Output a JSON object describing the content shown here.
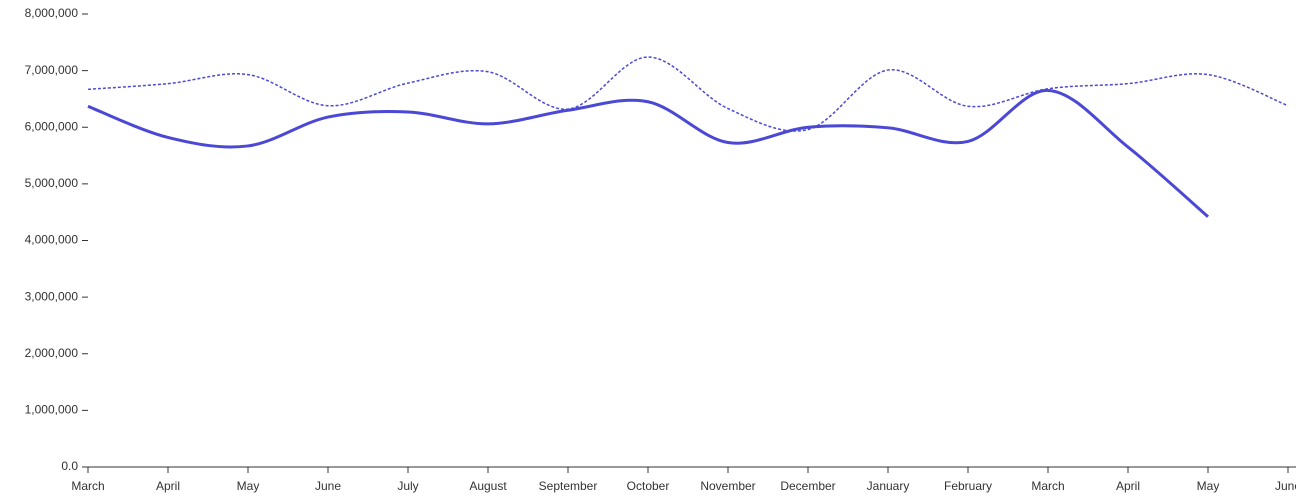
{
  "chart_data": {
    "type": "line",
    "categories": [
      "March",
      "April",
      "May",
      "June",
      "July",
      "August",
      "September",
      "October",
      "November",
      "December",
      "January",
      "February",
      "March",
      "April",
      "May",
      "June"
    ],
    "series": [
      {
        "color": "#4b48d6",
        "style": "solid",
        "values": [
          6370000,
          5820000,
          5670000,
          6180000,
          6270000,
          6060000,
          6300000,
          6450000,
          5730000,
          6000000,
          5990000,
          5750000,
          6650000,
          5650000,
          4420000,
          null
        ]
      },
      {
        "color": "#4b48d6",
        "style": "dashed",
        "values": [
          6670000,
          6770000,
          6930000,
          6380000,
          6780000,
          6980000,
          6320000,
          7240000,
          6330000,
          5960000,
          7010000,
          6370000,
          6680000,
          6770000,
          6930000,
          6380000
        ]
      }
    ],
    "ylim": [
      0,
      8000000
    ],
    "yticks": [
      {
        "value": 0,
        "label": "0.0"
      },
      {
        "value": 1000000,
        "label": "1,000,000"
      },
      {
        "value": 2000000,
        "label": "2,000,000"
      },
      {
        "value": 3000000,
        "label": "3,000,000"
      },
      {
        "value": 4000000,
        "label": "4,000,000"
      },
      {
        "value": 5000000,
        "label": "5,000,000"
      },
      {
        "value": 6000000,
        "label": "6,000,000"
      },
      {
        "value": 7000000,
        "label": "7,000,000"
      },
      {
        "value": 8000000,
        "label": "8,000,000"
      }
    ],
    "grid": false
  }
}
